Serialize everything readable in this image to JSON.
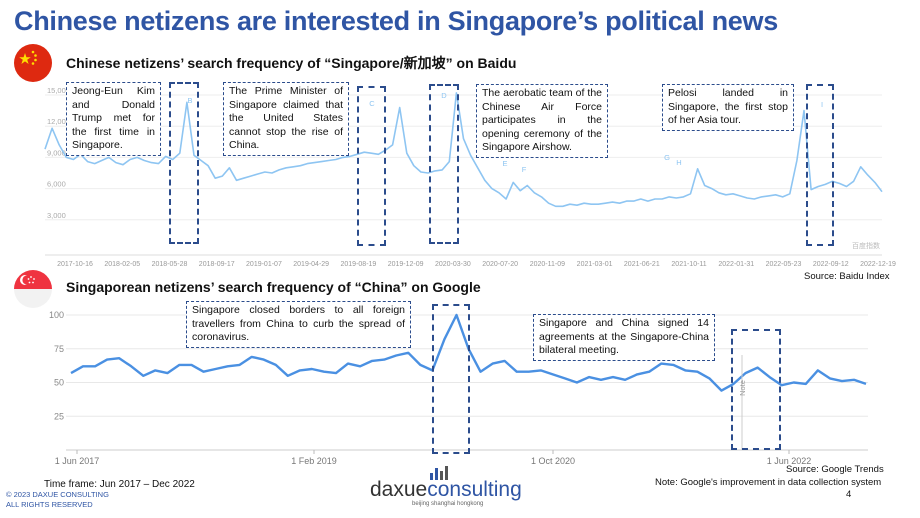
{
  "title": "Chinese netizens are interested in Singapore’s political news",
  "baidu": {
    "subtitle": "Chinese netizens’ search frequency of “Singapore/新加坡” on Baidu",
    "source": "Source: Baidu Index",
    "watermark": "百度指数",
    "annotations": {
      "a": "Jeong-Eun Kim and Donald Trump met for the first time in Singapore.",
      "b": "The Prime Minister of Singapore claimed that the United States cannot stop the rise of China.",
      "c": "The aerobatic team of the Chinese Air Force participates in the opening ceremony of the Singapore Airshow.",
      "d": "Pelosi landed in Singapore, the first stop of her Asia tour."
    }
  },
  "google": {
    "subtitle": "Singaporean netizens’ search frequency of “China” on Google",
    "source": "Source: Google Trends",
    "note_text": "Note: Google's improvement in data collection system",
    "note_marker": "Note",
    "annotations": {
      "a": "Singapore closed borders to all foreign travellers from China to curb the spread of coronavirus.",
      "b": "Singapore and China signed 14 agreements at the Singapore-China bilateral meeting."
    }
  },
  "timeframe": "Time frame: Jun 2017 – Dec 2022",
  "copyright": [
    "© 2023 DAXUE CONSULTING",
    "ALL RIGHTS RESERVED"
  ],
  "logo": {
    "part1": "daxue",
    "part2": "consulting",
    "tagline": "beijing shanghai hongkong"
  },
  "page_number": "4",
  "colors": {
    "title": "#2f55a4",
    "line": "#4a90e2",
    "baidu_line": "#8ec5f2",
    "highlight_border": "#2b4c8c"
  },
  "chart_data": [
    {
      "type": "line",
      "title": "Chinese netizens’ search frequency of “Singapore/新加坡” on Baidu",
      "x_ticks": [
        "2017-10-16",
        "2018-02-05",
        "2018-05-28",
        "2018-09-17",
        "2019-01-07",
        "2019-04-29",
        "2019-08-19",
        "2019-12-09",
        "2020-03-30",
        "2020-07-20",
        "2020-11-09",
        "2021-03-01",
        "2021-06-21",
        "2021-10-11",
        "2022-01-31",
        "2022-05-23",
        "2022-09-12",
        "2022-12-19"
      ],
      "y_ticks": [
        3000,
        6000,
        9000,
        12000,
        15000
      ],
      "ylim": [
        0,
        15000
      ],
      "event_markers": [
        "B",
        "C",
        "D",
        "E",
        "F",
        "G",
        "H",
        "I"
      ],
      "series": [
        {
          "values": [
            9800,
            11800,
            10200,
            9000,
            8800,
            9300,
            8600,
            8400,
            8700,
            9000,
            8500,
            8300,
            8800,
            9000,
            8700,
            8500,
            8400,
            9100,
            8800,
            9400,
            14300,
            9200,
            8700,
            8200,
            7000,
            7200,
            8000,
            6800,
            7000,
            7200,
            7400,
            7600,
            7500,
            7800,
            8000,
            8100,
            8200,
            8400,
            8500,
            8600,
            8700,
            8800,
            9000,
            9100,
            9300,
            9500,
            9400,
            9300,
            9700,
            10200,
            13800,
            9400,
            8200,
            7600,
            7500,
            7700,
            7800,
            8600,
            15200,
            10800,
            9200,
            8000,
            6800,
            6000,
            5600,
            5000,
            6600,
            5800,
            6300,
            5600,
            5200,
            4600,
            4300,
            4300,
            4500,
            4400,
            4600,
            4500,
            4500,
            4600,
            4700,
            4600,
            4800,
            4800,
            5000,
            4800,
            5000,
            5000,
            5200,
            5100,
            5200,
            5500,
            7900,
            6300,
            6000,
            5600,
            5400,
            5500,
            5300,
            5100,
            5000,
            5200,
            5300,
            5400,
            5200,
            5500,
            8700,
            13500,
            5900,
            6200,
            6400,
            6700,
            6500,
            6200,
            6700,
            8100,
            7300,
            6600,
            5700
          ]
        }
      ]
    },
    {
      "type": "line",
      "title": "Singaporean netizens’ search frequency of “China” on Google",
      "x_ticks": [
        "1 Jun 2017",
        "1 Feb 2019",
        "1 Oct 2020",
        "1 Jun 2022"
      ],
      "y_ticks": [
        25,
        50,
        75,
        100
      ],
      "ylim": [
        0,
        100
      ],
      "series": [
        {
          "values": [
            57,
            62,
            62,
            67,
            68,
            62,
            55,
            59,
            57,
            63,
            63,
            58,
            60,
            62,
            63,
            69,
            67,
            63,
            55,
            59,
            60,
            58,
            57,
            64,
            62,
            66,
            67,
            70,
            72,
            63,
            59,
            82,
            100,
            75,
            58,
            64,
            66,
            58,
            58,
            59,
            56,
            53,
            50,
            54,
            52,
            54,
            52,
            56,
            58,
            64,
            63,
            59,
            58,
            53,
            44,
            49,
            57,
            61,
            54,
            48,
            50,
            49,
            59,
            53,
            51,
            52,
            49
          ]
        }
      ]
    }
  ]
}
